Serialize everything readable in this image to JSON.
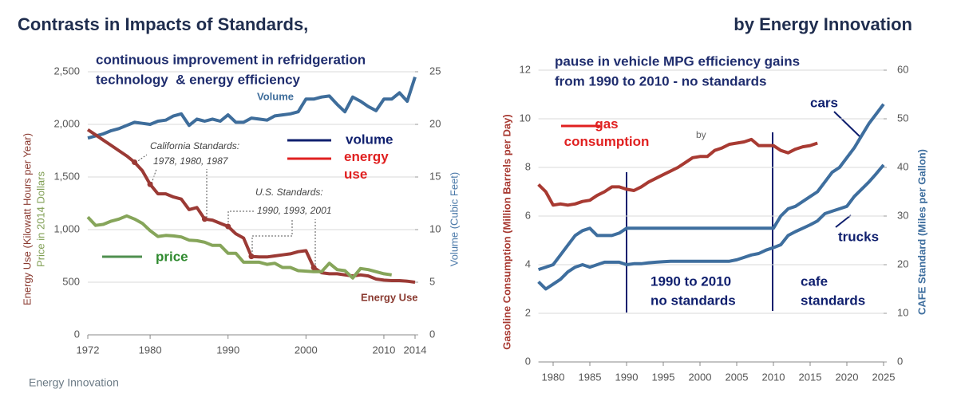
{
  "header": {
    "left": "Contrasts in Impacts of Standards,",
    "right": "by Energy Innovation"
  },
  "source": "Energy Innovation",
  "chart_data": [
    {
      "type": "line",
      "ylabels": [
        "Energy Use (Kilowatt Hours per Year)",
        "Price in 2014 Dollars"
      ],
      "y2label": "Volume (Cubic Feet)",
      "annotations": [
        "continuous improvement in refridgeration",
        "technology  & energy efficiency",
        "Volume",
        "California Standards:",
        "1978, 1980, 1987",
        "U.S. Standards:",
        "1990, 1993, 2001",
        "Energy Use"
      ],
      "x": [
        1972,
        1973,
        1974,
        1975,
        1976,
        1977,
        1978,
        1979,
        1980,
        1981,
        1982,
        1983,
        1984,
        1985,
        1986,
        1987,
        1988,
        1989,
        1990,
        1991,
        1992,
        1993,
        1994,
        1995,
        1996,
        1997,
        1998,
        1999,
        2000,
        2001,
        2002,
        2003,
        2004,
        2005,
        2006,
        2007,
        2008,
        2009,
        2010,
        2011,
        2012,
        2013,
        2014
      ],
      "xlim": [
        1972,
        2014
      ],
      "xticks": [
        1972,
        1980,
        1990,
        2000,
        2010,
        2014
      ],
      "ylim": [
        0,
        2500
      ],
      "yticks": [
        0,
        500,
        {
          "value": 1000,
          "label": "1,000"
        },
        {
          "value": 1500,
          "label": "1,500"
        },
        {
          "value": 2000,
          "label": "2,000"
        },
        {
          "value": 2500,
          "label": "2,500"
        }
      ],
      "y2lim": [
        0,
        25
      ],
      "y2ticks": [
        0,
        5,
        10,
        15,
        20,
        25
      ],
      "grid": true,
      "series": [
        {
          "name": "volume",
          "color": "#3e6d9b",
          "axis": "y2",
          "values": [
            18.7,
            18.9,
            19.1,
            19.4,
            19.6,
            19.9,
            20.2,
            20.1,
            20.0,
            20.3,
            20.4,
            20.8,
            21.0,
            19.9,
            20.5,
            20.3,
            20.5,
            20.3,
            20.9,
            20.2,
            20.2,
            20.6,
            20.5,
            20.4,
            20.8,
            20.9,
            21.0,
            21.2,
            22.4,
            22.4,
            22.6,
            22.7,
            21.9,
            21.2,
            22.6,
            22.2,
            21.7,
            21.3,
            22.4,
            22.4,
            23.0,
            22.2,
            24.5
          ]
        },
        {
          "name": "energy use",
          "color": "#9b3a35",
          "values": [
            1950,
            1900,
            1850,
            1800,
            1750,
            1700,
            1640,
            1560,
            1430,
            1340,
            1340,
            1310,
            1290,
            1190,
            1210,
            1100,
            1090,
            1060,
            1030,
            960,
            920,
            745,
            740,
            740,
            750,
            760,
            770,
            790,
            800,
            640,
            590,
            580,
            580,
            570,
            560,
            570,
            560,
            530,
            520,
            515,
            515,
            510,
            500
          ]
        },
        {
          "name": "price",
          "color": "#86a55a",
          "values": [
            1120,
            1040,
            1050,
            1080,
            1100,
            1130,
            1100,
            1060,
            990,
            935,
            945,
            940,
            930,
            900,
            895,
            880,
            850,
            850,
            775,
            775,
            690,
            690,
            690,
            670,
            680,
            640,
            640,
            610,
            605,
            600,
            600,
            680,
            620,
            610,
            540,
            630,
            620,
            600,
            580,
            570,
            null,
            null,
            null
          ]
        }
      ]
    },
    {
      "type": "line",
      "ylabel": "Gasoline Consumption (Million Barrels per Day)",
      "y2label": "CAFE Standard (Miles per Gallon)",
      "annotations": [
        "pause in vehicle MPG efficiency gains",
        "from 1990 to 2010 - no standards",
        "by",
        "1990 to 2010",
        "no standards",
        "cafe",
        "standards"
      ],
      "x": [
        1978,
        1979,
        1980,
        1981,
        1982,
        1983,
        1984,
        1985,
        1986,
        1987,
        1988,
        1989,
        1990,
        1991,
        1992,
        1993,
        1994,
        1995,
        1996,
        1997,
        1998,
        1999,
        2000,
        2001,
        2002,
        2003,
        2004,
        2005,
        2006,
        2007,
        2008,
        2009,
        2010,
        2011,
        2012,
        2013,
        2014,
        2015,
        2016,
        2017,
        2018,
        2019,
        2020,
        2021,
        2022,
        2023,
        2024,
        2025
      ],
      "xlim": [
        1978,
        2025
      ],
      "xticks": [
        1980,
        1985,
        1990,
        1995,
        2000,
        2005,
        2010,
        2015,
        2020,
        2025
      ],
      "ylim": [
        0,
        12
      ],
      "yticks": [
        0,
        2,
        4,
        6,
        8,
        10,
        12
      ],
      "y2lim": [
        0,
        60
      ],
      "y2ticks": [
        0,
        10,
        20,
        30,
        40,
        50,
        60
      ],
      "grid": true,
      "series": [
        {
          "name": "gas consumption",
          "color": "#a83a32",
          "values": [
            7.3,
            7.0,
            6.45,
            6.5,
            6.45,
            6.5,
            6.6,
            6.65,
            6.85,
            7.0,
            7.2,
            7.2,
            7.1,
            7.05,
            7.2,
            7.4,
            7.55,
            7.7,
            7.85,
            8.0,
            8.2,
            8.4,
            8.45,
            8.45,
            8.7,
            8.8,
            8.95,
            9.0,
            9.05,
            9.15,
            8.9,
            8.9,
            8.9,
            8.7,
            8.6,
            8.75,
            8.85,
            8.9,
            9.0,
            null,
            null,
            null,
            null,
            null,
            null,
            null,
            null,
            null
          ]
        },
        {
          "name": "cars",
          "color": "#3e6e9e",
          "axis": "y2",
          "values": [
            19,
            19.5,
            20,
            22,
            24,
            26,
            27,
            27.5,
            26,
            26,
            26,
            26.5,
            27.5,
            27.5,
            27.5,
            27.5,
            27.5,
            27.5,
            27.5,
            27.5,
            27.5,
            27.5,
            27.5,
            27.5,
            27.5,
            27.5,
            27.5,
            27.5,
            27.5,
            27.5,
            27.5,
            27.5,
            27.5,
            30,
            31.5,
            32,
            33,
            34,
            35,
            37,
            39,
            40,
            42,
            44,
            46.5,
            49,
            51,
            53
          ]
        },
        {
          "name": "trucks",
          "color": "#3e6e9e",
          "axis": "y2",
          "values": [
            16.5,
            15,
            16,
            17,
            18.5,
            19.5,
            20,
            19.5,
            20,
            20.5,
            20.5,
            20.5,
            20,
            20.2,
            20.2,
            20.4,
            20.5,
            20.6,
            20.7,
            20.7,
            20.7,
            20.7,
            20.7,
            20.7,
            20.7,
            20.7,
            20.7,
            21,
            21.5,
            22,
            22.3,
            23,
            23.5,
            24.1,
            26,
            26.8,
            27.5,
            28.2,
            29,
            30.5,
            31,
            31.5,
            32,
            34,
            35.5,
            37,
            38.7,
            40.5
          ]
        }
      ]
    }
  ]
}
